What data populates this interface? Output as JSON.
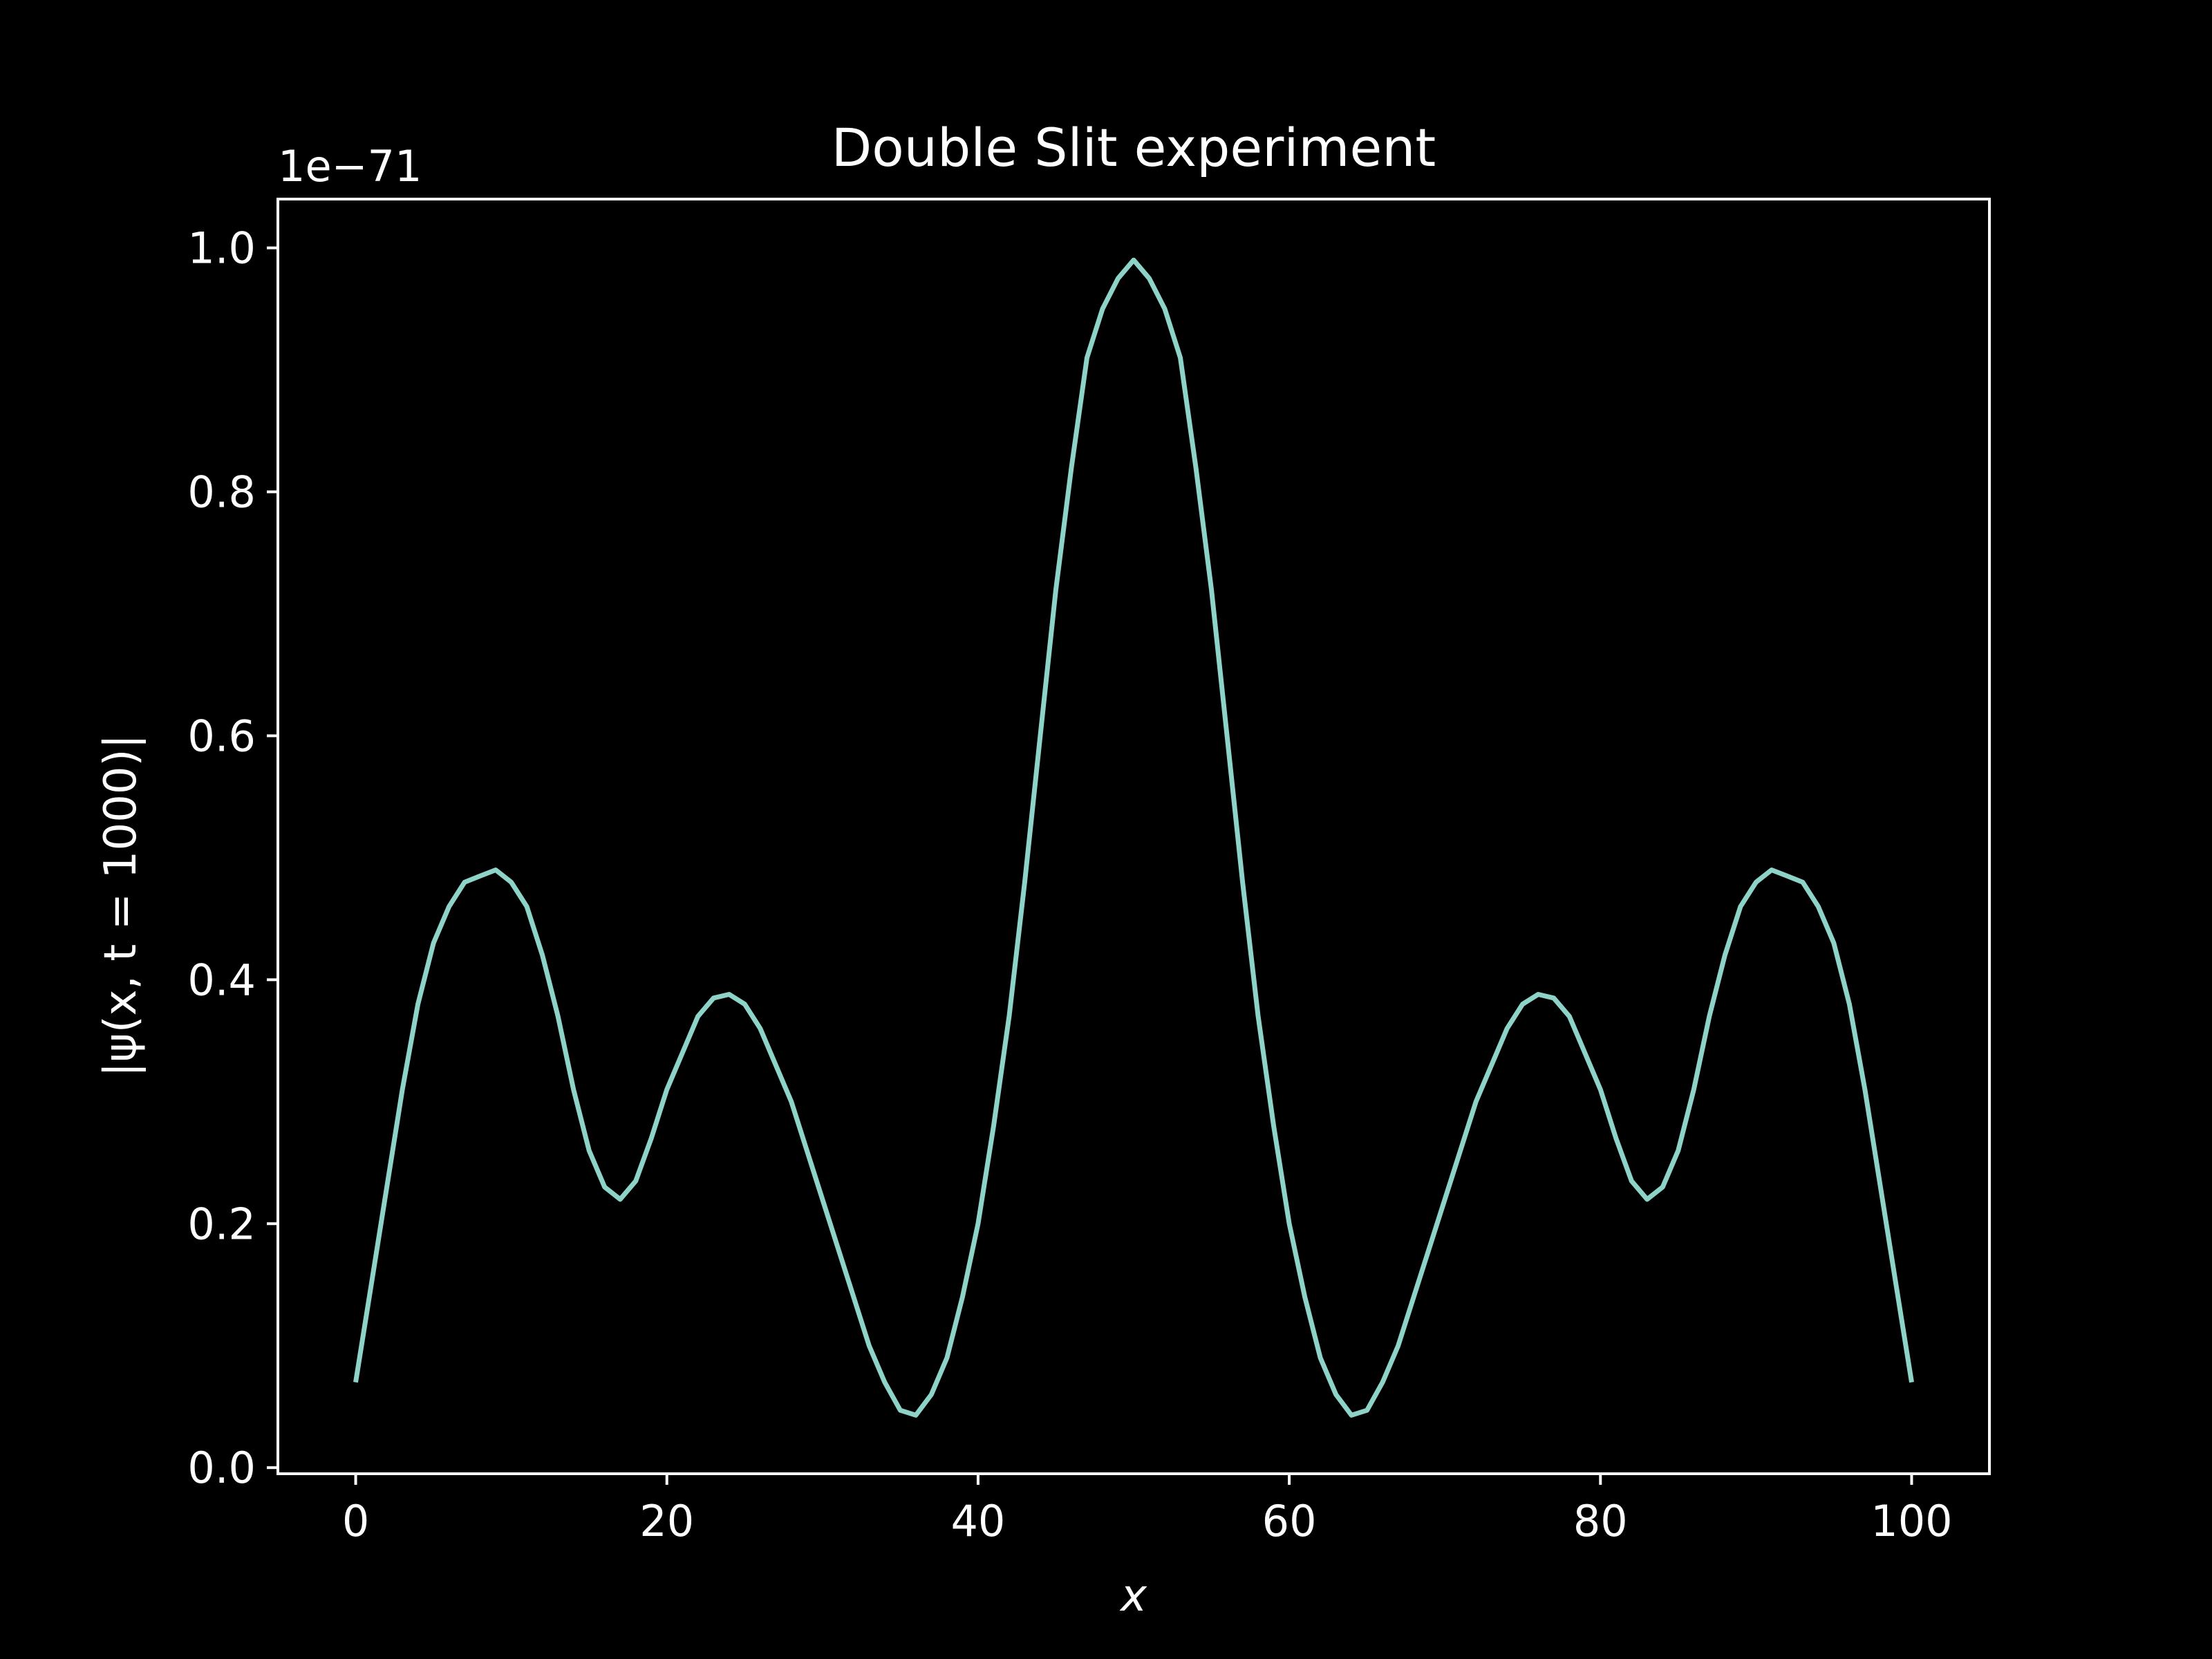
{
  "chart_data": {
    "type": "line",
    "title": "Double Slit experiment",
    "xlabel": "x",
    "ylabel": "|ψ(x, t = 1000)|",
    "y_offset_label": "1e−71",
    "xlim": [
      -5,
      105
    ],
    "ylim": [
      -0.005,
      1.04
    ],
    "x_ticks": [
      0,
      20,
      40,
      60,
      80,
      100
    ],
    "x_tick_labels": [
      "0",
      "20",
      "40",
      "60",
      "80",
      "100"
    ],
    "y_ticks": [
      0.0,
      0.2,
      0.4,
      0.6,
      0.8,
      1.0
    ],
    "y_tick_labels": [
      "0.0",
      "0.2",
      "0.4",
      "0.6",
      "0.8",
      "1.0"
    ],
    "grid": false,
    "colors": {
      "background": "#000000",
      "axes": "#ffffff",
      "line": "#8dd3c7"
    },
    "series": [
      {
        "x": [
          0,
          1,
          2,
          3,
          4,
          5,
          6,
          7,
          8,
          9,
          10,
          11,
          12,
          13,
          14,
          15,
          16,
          17,
          18,
          19,
          20,
          21,
          22,
          23,
          24,
          25,
          26,
          27,
          28,
          29,
          30,
          31,
          32,
          33,
          34,
          35,
          36,
          37,
          38,
          39,
          40,
          41,
          42,
          43,
          44,
          45,
          46,
          47,
          48,
          49,
          50,
          51,
          52,
          53,
          54,
          55,
          56,
          57,
          58,
          59,
          60,
          61,
          62,
          63,
          64,
          65,
          66,
          67,
          68,
          69,
          70,
          71,
          72,
          73,
          74,
          75,
          76,
          77,
          78,
          79,
          80,
          81,
          82,
          83,
          84,
          85,
          86,
          87,
          88,
          89,
          90,
          91,
          92,
          93,
          94,
          95,
          96,
          97,
          98,
          99,
          100
        ],
        "y": [
          0.07,
          0.15,
          0.23,
          0.31,
          0.38,
          0.43,
          0.46,
          0.48,
          0.485,
          0.49,
          0.48,
          0.46,
          0.42,
          0.37,
          0.31,
          0.26,
          0.23,
          0.22,
          0.235,
          0.27,
          0.31,
          0.34,
          0.37,
          0.385,
          0.388,
          0.38,
          0.36,
          0.33,
          0.3,
          0.26,
          0.22,
          0.18,
          0.14,
          0.1,
          0.07,
          0.047,
          0.043,
          0.06,
          0.09,
          0.14,
          0.2,
          0.28,
          0.37,
          0.48,
          0.6,
          0.72,
          0.82,
          0.91,
          0.95,
          0.975,
          0.99,
          0.975,
          0.95,
          0.91,
          0.82,
          0.72,
          0.6,
          0.48,
          0.37,
          0.28,
          0.2,
          0.14,
          0.09,
          0.06,
          0.043,
          0.047,
          0.07,
          0.1,
          0.14,
          0.18,
          0.22,
          0.26,
          0.3,
          0.33,
          0.36,
          0.38,
          0.388,
          0.385,
          0.37,
          0.34,
          0.31,
          0.27,
          0.235,
          0.22,
          0.23,
          0.26,
          0.31,
          0.37,
          0.42,
          0.46,
          0.48,
          0.49,
          0.485,
          0.48,
          0.46,
          0.43,
          0.38,
          0.31,
          0.23,
          0.15,
          0.07
        ]
      }
    ]
  }
}
